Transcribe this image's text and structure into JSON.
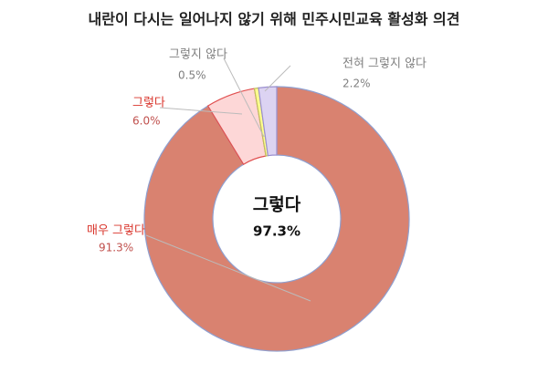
{
  "chart_data": {
    "type": "donut",
    "title": "내란이 다시는 일어나지 않기 위해 민주시민교육 활성화 의견",
    "categories": [
      "매우 그렇다",
      "그렇다",
      "그렇지 않다",
      "전혀 그렇지 않다"
    ],
    "values": [
      91.3,
      6.0,
      0.5,
      2.2
    ],
    "value_labels": [
      "91.3%",
      "6.0%",
      "0.5%",
      "2.2%"
    ],
    "colors": [
      "#d98270",
      "#fdd7d7",
      "#ffff8f",
      "#dcd3f2"
    ],
    "label_colors": [
      "#d9342b",
      "#d9342b",
      "#7f7f7f",
      "#7f7f7f"
    ],
    "center": {
      "label": "그렇다",
      "value": 97.3,
      "value_label": "97.3%"
    }
  }
}
